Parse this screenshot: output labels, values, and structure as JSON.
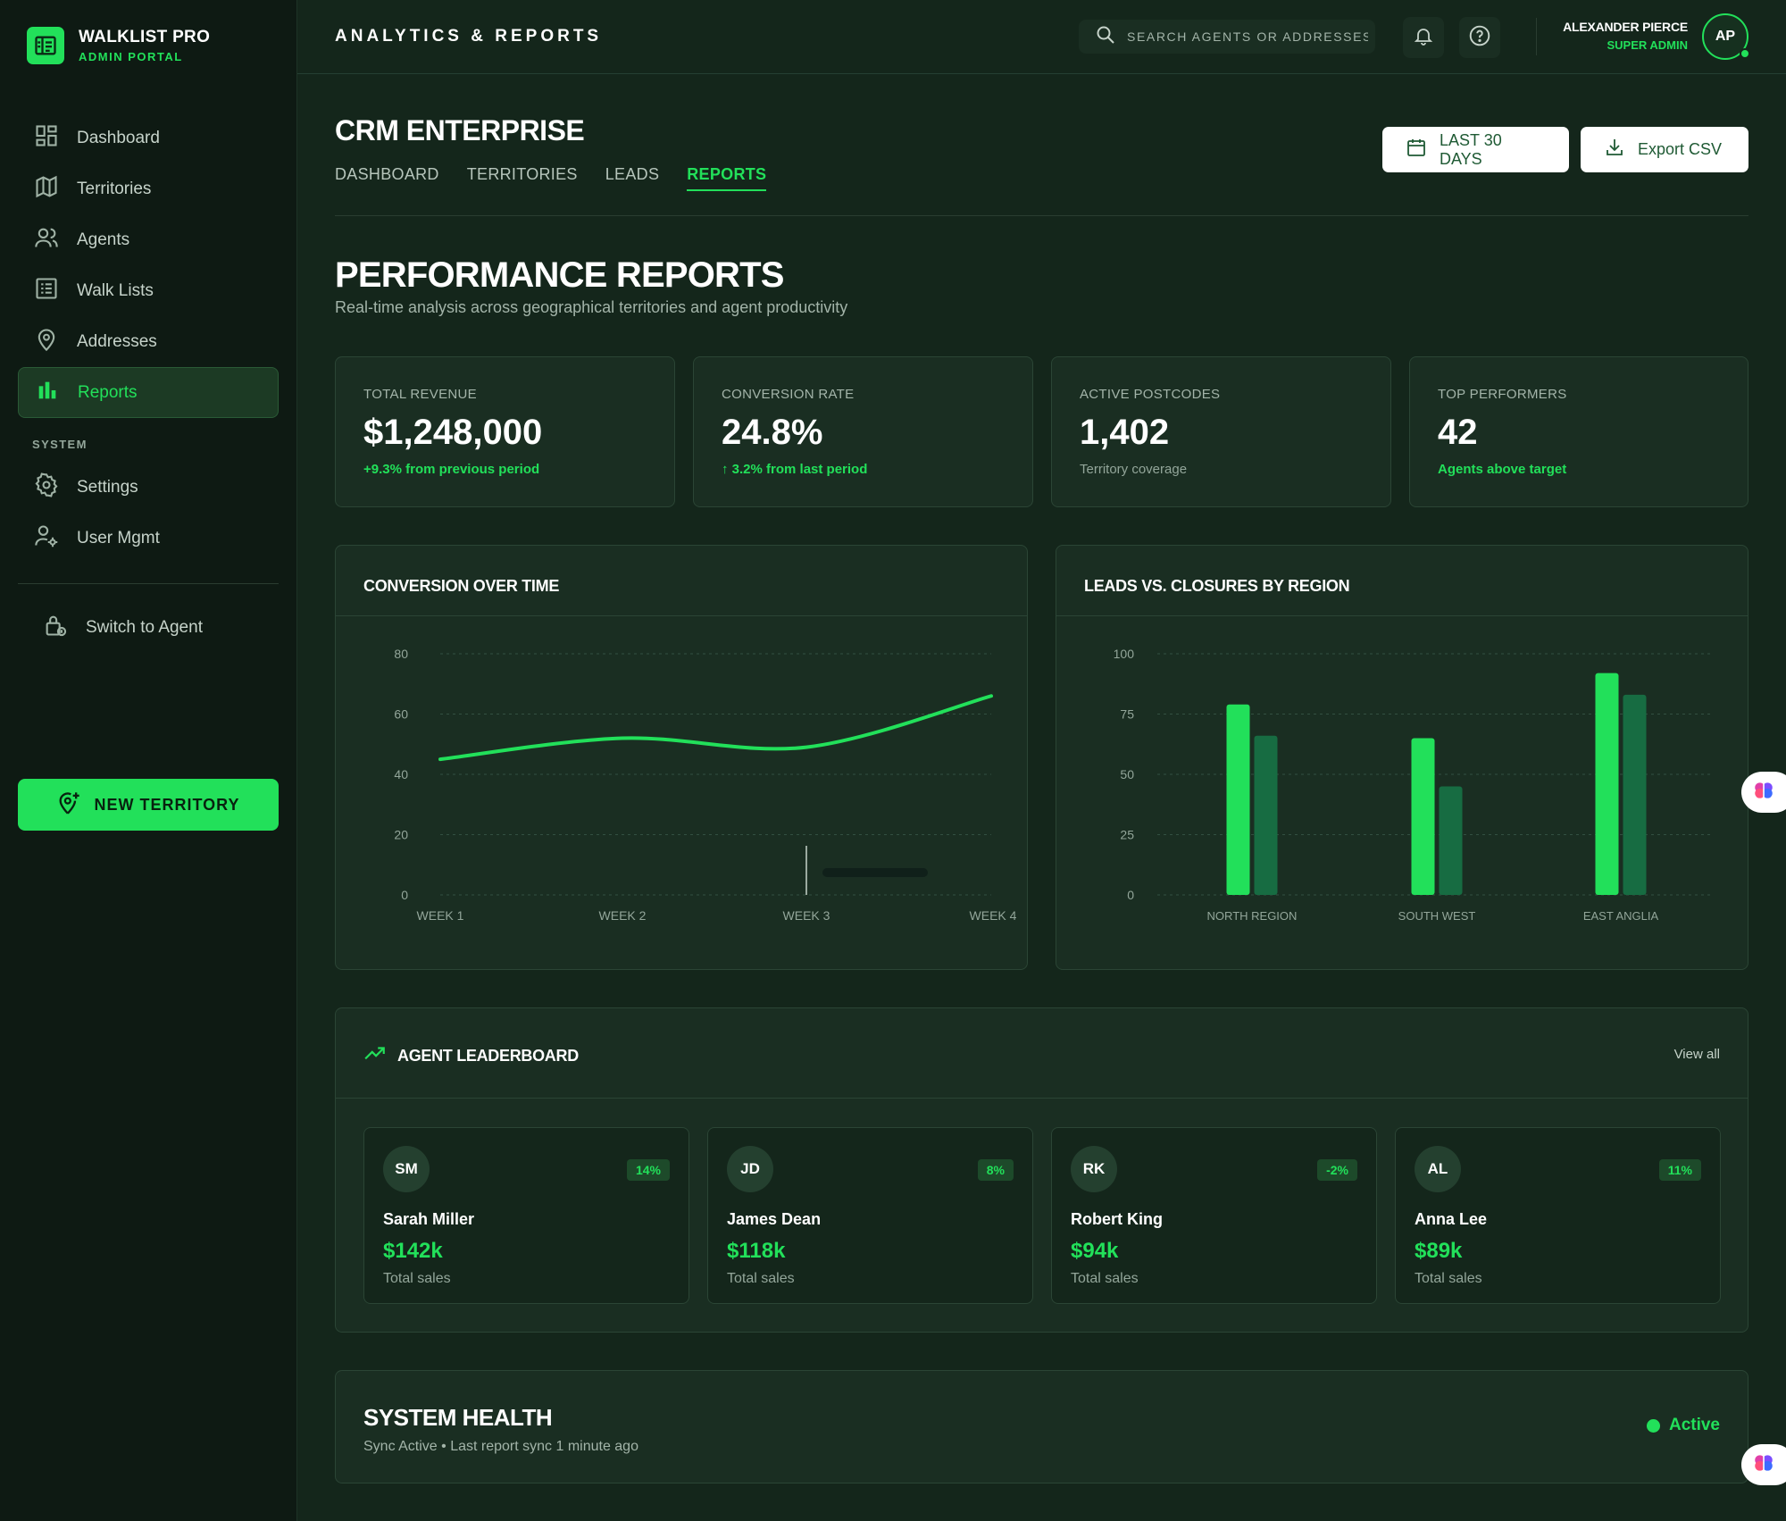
{
  "brand": {
    "title": "WALKLIST PRO",
    "subtitle": "ADMIN PORTAL"
  },
  "sidebar": {
    "items": [
      {
        "label": "Dashboard",
        "icon": "dashboard-icon"
      },
      {
        "label": "Territories",
        "icon": "map-icon"
      },
      {
        "label": "Agents",
        "icon": "users-icon"
      },
      {
        "label": "Walk Lists",
        "icon": "list-icon"
      },
      {
        "label": "Addresses",
        "icon": "location-pin-icon"
      },
      {
        "label": "Reports",
        "icon": "bar-chart-icon",
        "active": true
      }
    ],
    "section_label": "SYSTEM",
    "system_items": [
      {
        "label": "Settings",
        "icon": "gear-icon"
      },
      {
        "label": "User Mgmt",
        "icon": "user-cog-icon"
      }
    ],
    "switch_label": "Switch to Agent",
    "new_territory_label": "NEW TERRITORY"
  },
  "header": {
    "title": "ANALYTICS & REPORTS",
    "search_placeholder": "SEARCH AGENTS OR ADDRESSES",
    "user_name": "ALEXANDER PIERCE",
    "user_role": "SUPER ADMIN",
    "user_initials": "AP"
  },
  "crm": {
    "title": "CRM ENTERPRISE",
    "tabs": [
      {
        "label": "DASHBOARD"
      },
      {
        "label": "TERRITORIES"
      },
      {
        "label": "LEADS"
      },
      {
        "label": "REPORTS",
        "active": true
      }
    ],
    "date_button": "LAST 30 DAYS",
    "export_button": "Export CSV"
  },
  "page": {
    "title": "PERFORMANCE REPORTS",
    "subtitle": "Real-time analysis across geographical territories and agent productivity"
  },
  "stats": [
    {
      "label": "TOTAL REVENUE",
      "value": "$1,248,000",
      "note": "+9.3% from previous period"
    },
    {
      "label": "CONVERSION RATE",
      "value": "24.8%",
      "note": "↑ 3.2% from last period"
    },
    {
      "label": "ACTIVE POSTCODES",
      "value": "1,402",
      "note": "Territory coverage"
    },
    {
      "label": "TOP PERFORMERS",
      "value": "42",
      "note": "Agents above target"
    }
  ],
  "chart_data": [
    {
      "type": "line",
      "title": "CONVERSION OVER TIME",
      "x": [
        "WEEK 1",
        "WEEK 2",
        "WEEK 3",
        "WEEK 4"
      ],
      "series": [
        {
          "values": [
            45,
            52,
            49,
            66
          ]
        }
      ],
      "ylim": [
        0,
        80
      ],
      "yticks": [
        0,
        20,
        40,
        60,
        80
      ],
      "grid": true,
      "color": "#22e05a"
    },
    {
      "type": "bar",
      "title": "LEADS VS. CLOSURES BY REGION",
      "categories": [
        "NORTH REGION",
        "SOUTH WEST",
        "EAST ANGLIA"
      ],
      "series": [
        {
          "values": [
            79,
            65,
            92
          ],
          "color": "#22e05a"
        },
        {
          "values": [
            66,
            45,
            83
          ],
          "color": "#176c42"
        }
      ],
      "ylim": [
        0,
        100
      ],
      "yticks": [
        0,
        25,
        50,
        75,
        100
      ],
      "grid": true
    }
  ],
  "leaderboard": {
    "title": "AGENT LEADERBOARD",
    "view_all": "View all",
    "agents": [
      {
        "initials": "SM",
        "name": "Sarah Miller",
        "sales": "$142k",
        "change": "14%",
        "caption": "Total sales"
      },
      {
        "initials": "JD",
        "name": "James Dean",
        "sales": "$118k",
        "change": "8%",
        "caption": "Total sales"
      },
      {
        "initials": "RK",
        "name": "Robert King",
        "sales": "$94k",
        "change": "-2%",
        "caption": "Total sales"
      },
      {
        "initials": "AL",
        "name": "Anna Lee",
        "sales": "$89k",
        "change": "11%",
        "caption": "Total sales"
      }
    ]
  },
  "system_health": {
    "title": "SYSTEM HEALTH",
    "subtitle": "Sync Active • Last report sync 1 minute ago",
    "status": "Active"
  },
  "colors": {
    "accent": "#22e05a",
    "background": "#14261b",
    "sidebar": "#0e1a13",
    "card": "#1a2e22",
    "bar_secondary": "#176c42"
  }
}
